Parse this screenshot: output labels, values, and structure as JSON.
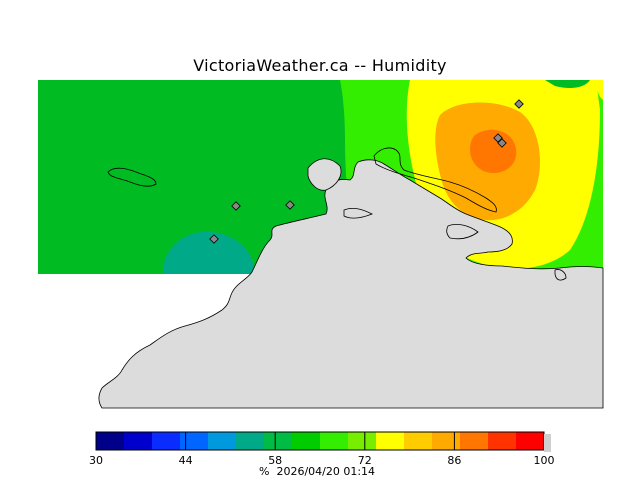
{
  "title": "VictoriaWeather.ca -- Humidity",
  "footer": {
    "unit": "%",
    "timestamp": "2026/04/20 01:14"
  },
  "colorbar": {
    "ticks": [
      "30",
      "44",
      "58",
      "72",
      "86",
      "100"
    ],
    "colors": [
      "#000088",
      "#0000cc",
      "#0a2cff",
      "#0066ff",
      "#0099dd",
      "#00aa88",
      "#00bb44",
      "#00cc00",
      "#33ee00",
      "#77ee00",
      "#ffff00",
      "#ffcc00",
      "#ffaa00",
      "#ff7700",
      "#ff3300",
      "#ff0000"
    ]
  },
  "stations": 6,
  "colors": {
    "land": "#dcdcdc",
    "green": "#00bb22",
    "light_green": "#33ee00",
    "yellow": "#ffff00",
    "orange": "#ffaa00",
    "dark_orange": "#ff7700",
    "teal": "#00aa88"
  }
}
